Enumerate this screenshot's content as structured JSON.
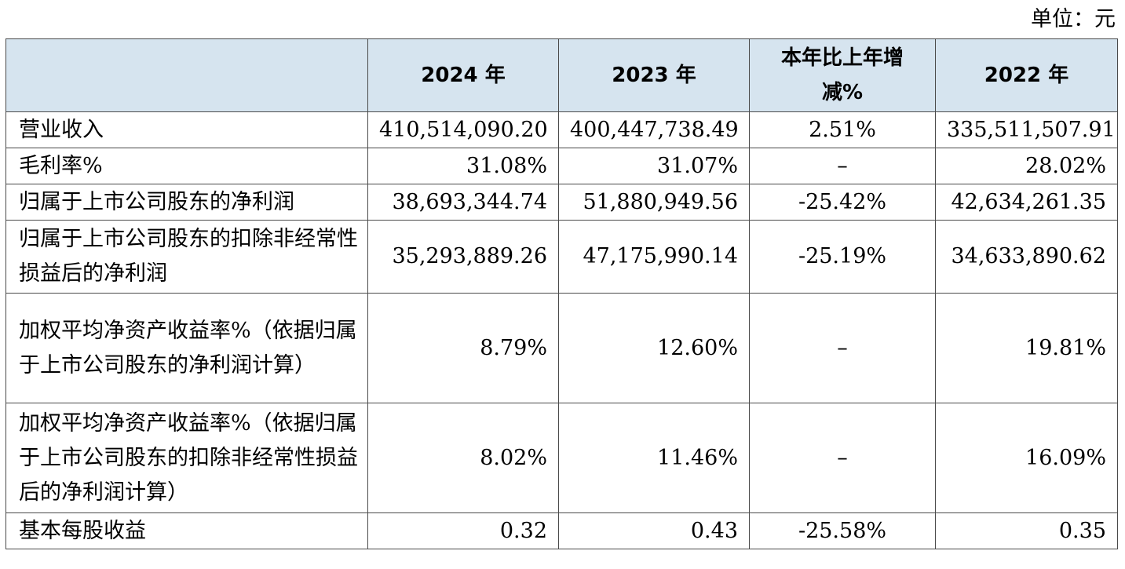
{
  "unit": "单位：元",
  "table": {
    "headers": [
      "",
      "2024 年",
      "2023 年",
      "本年比上年增减%",
      "2022 年"
    ],
    "rows": [
      {
        "label": "营业收入",
        "y2024": "410,514,090.20",
        "y2023": "400,447,738.49",
        "change": "2.51%",
        "y2022": "335,511,507.91"
      },
      {
        "label": "毛利率%",
        "y2024": "31.08%",
        "y2023": "31.07%",
        "change": "–",
        "y2022": "28.02%"
      },
      {
        "label": "归属于上市公司股东的净利润",
        "y2024": "38,693,344.74",
        "y2023": "51,880,949.56",
        "change": "-25.42%",
        "y2022": "42,634,261.35"
      },
      {
        "label": "归属于上市公司股东的扣除非经常性损益后的净利润",
        "y2024": "35,293,889.26",
        "y2023": "47,175,990.14",
        "change": "-25.19%",
        "y2022": "34,633,890.62"
      },
      {
        "label": "加权平均净资产收益率%（依据归属于上市公司股东的净利润计算）",
        "y2024": "8.79%",
        "y2023": "12.60%",
        "change": "–",
        "y2022": "19.81%"
      },
      {
        "label": "加权平均净资产收益率%（依据归属于上市公司股东的扣除非经常性损益后的净利润计算）",
        "y2024": "8.02%",
        "y2023": "11.46%",
        "change": "–",
        "y2022": "16.09%"
      },
      {
        "label": "基本每股收益",
        "y2024": "0.32",
        "y2023": "0.43",
        "change": "-25.58%",
        "y2022": "0.35"
      }
    ]
  }
}
